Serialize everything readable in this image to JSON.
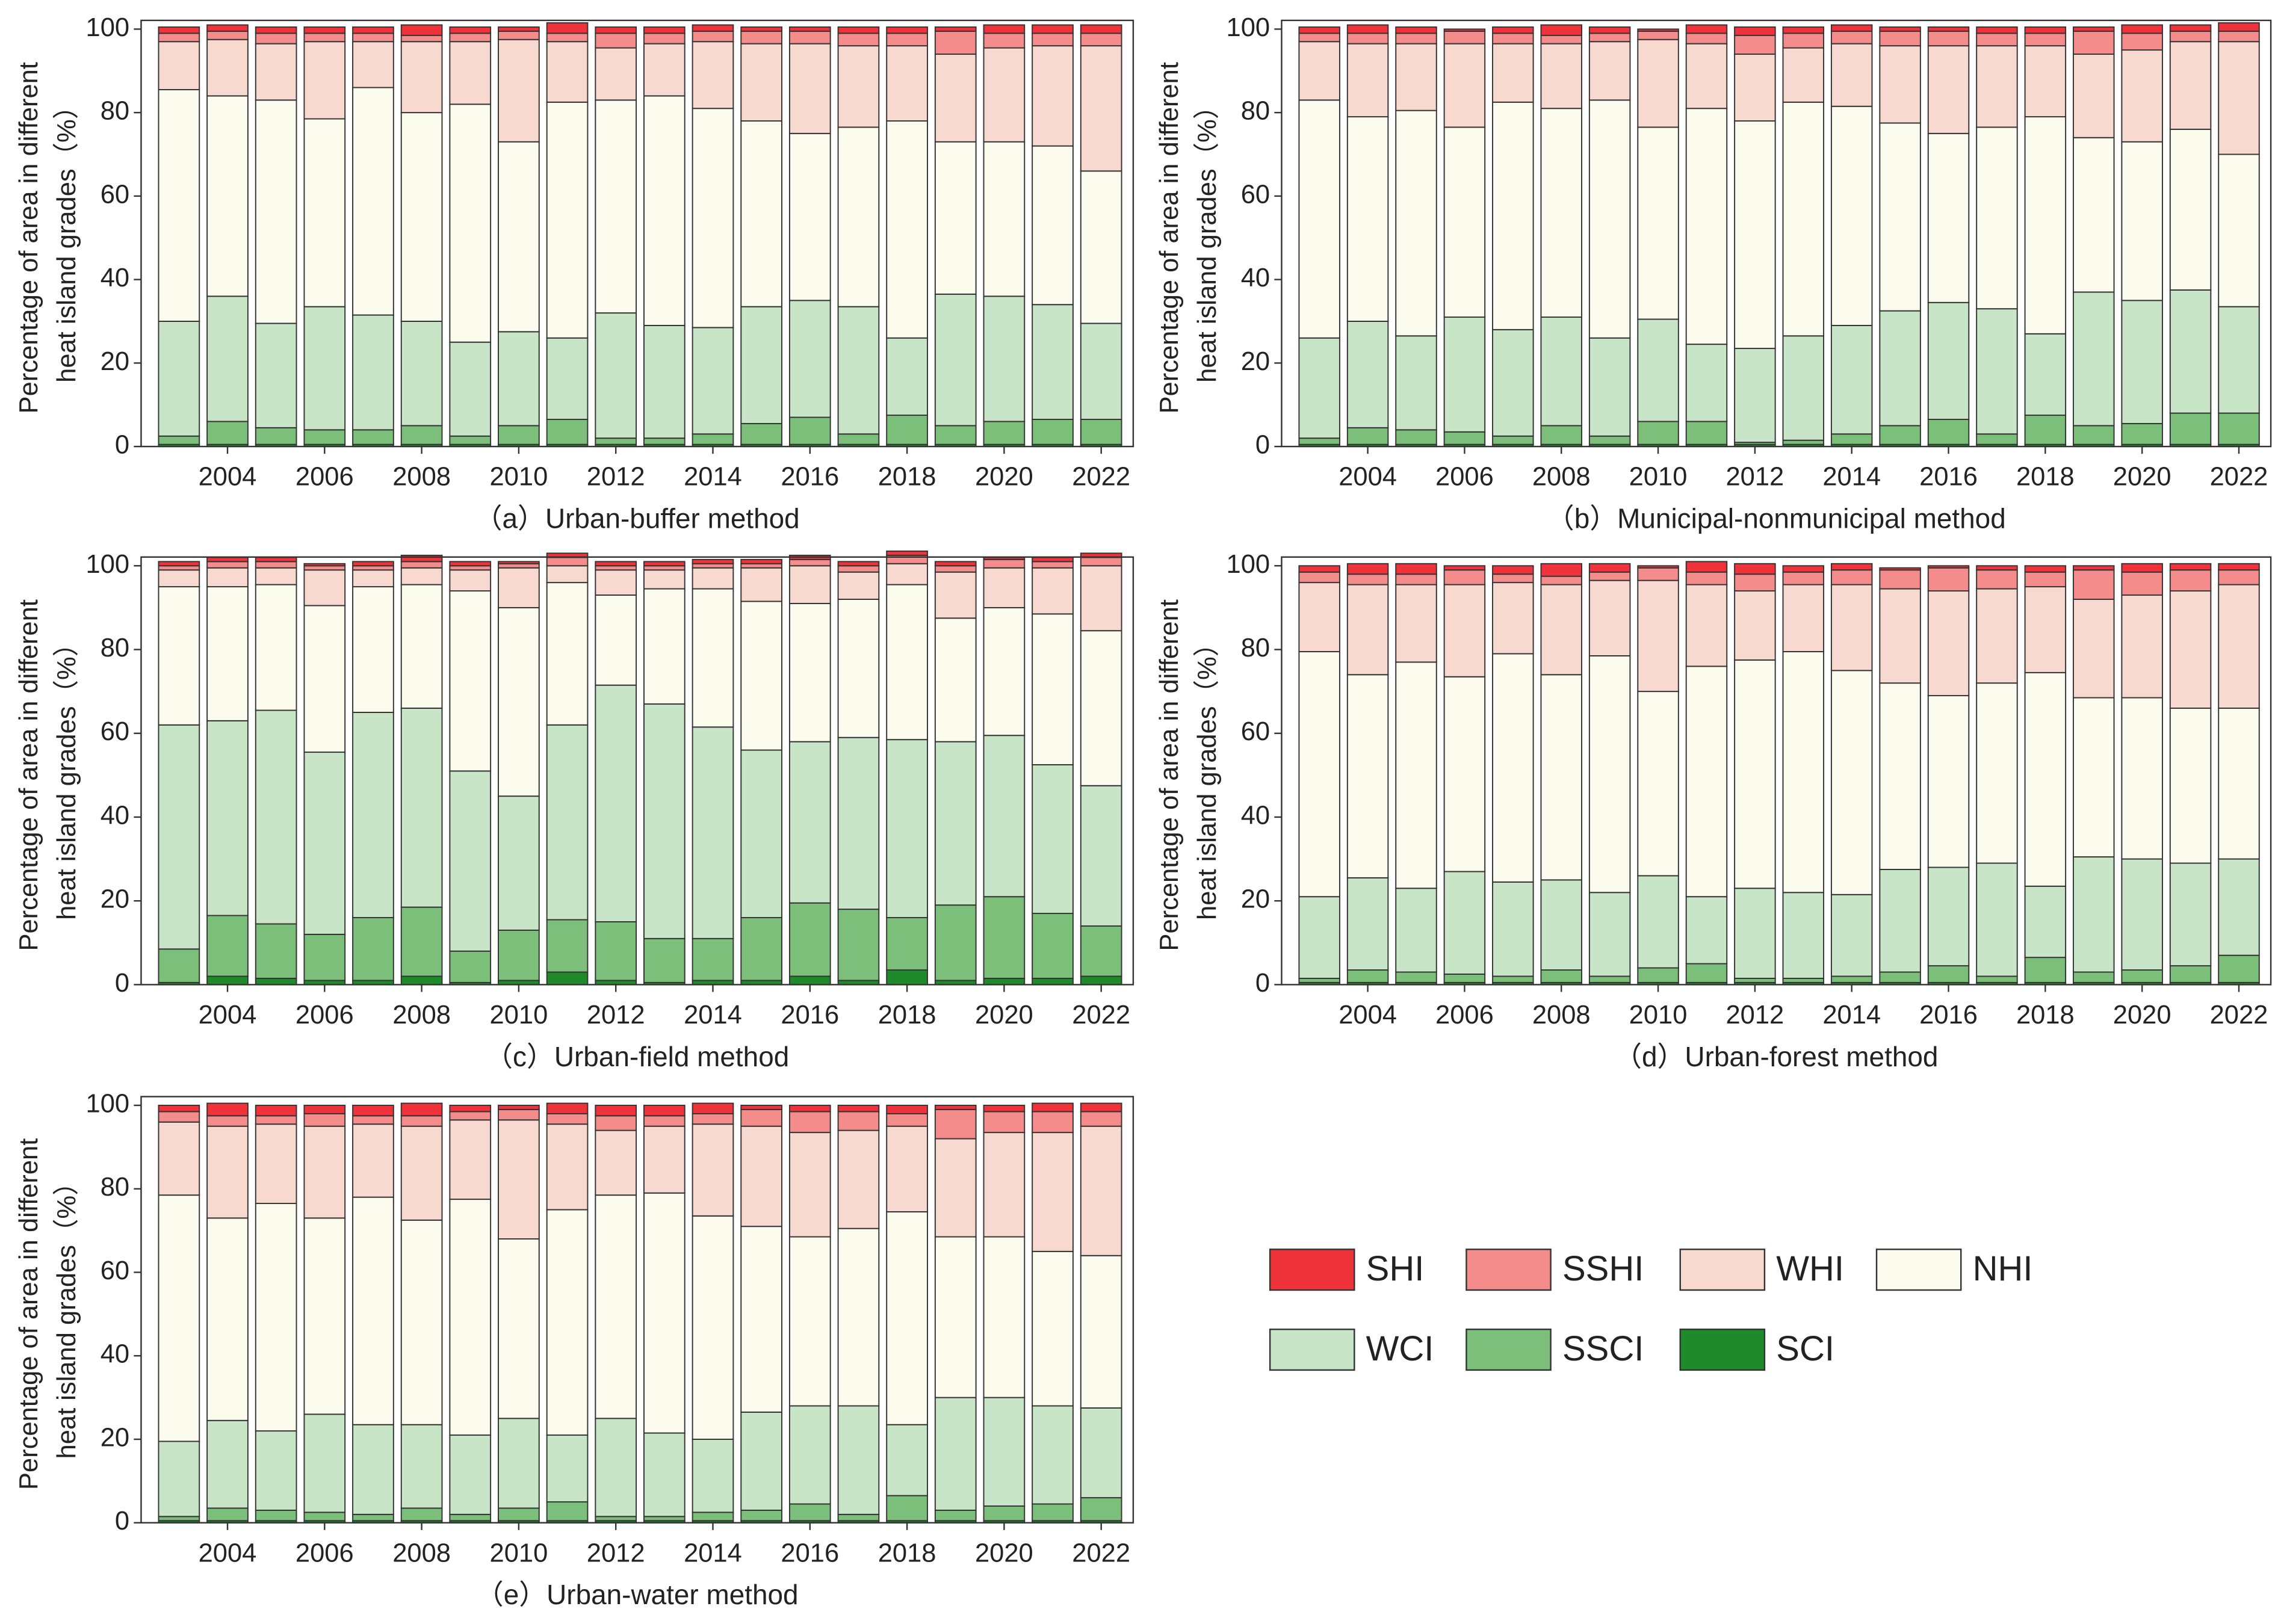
{
  "chart_data": [
    {
      "type": "bar",
      "stacked": true,
      "caption": "（a）Urban-buffer method",
      "ylabel": [
        "Percentage of area in different",
        "heat island grades（%）"
      ],
      "x": [
        2003,
        2004,
        2005,
        2006,
        2007,
        2008,
        2009,
        2010,
        2011,
        2012,
        2013,
        2014,
        2015,
        2016,
        2017,
        2018,
        2019,
        2020,
        2021,
        2022
      ],
      "xlim": [
        2002.22,
        2022.66
      ],
      "xticks": [
        2004,
        2006,
        2008,
        2010,
        2012,
        2014,
        2016,
        2018,
        2020,
        2022
      ],
      "ylim": [
        0,
        100
      ],
      "yticks": [
        0,
        20,
        40,
        60,
        80,
        100
      ],
      "series": [
        {
          "name": "SHI",
          "color": "#f0333b",
          "values": [
            1.5,
            1.5,
            1.5,
            1.5,
            1.5,
            2.5,
            1.5,
            1,
            2.5,
            1.5,
            1.5,
            1.5,
            1,
            1,
            1.5,
            1.5,
            1,
            2,
            2,
            2
          ]
        },
        {
          "name": "SSHI",
          "color": "#f48c8c",
          "values": [
            2,
            2,
            2.5,
            2,
            2,
            1.5,
            2,
            2,
            2,
            3.5,
            2.5,
            2.5,
            3,
            3,
            3,
            3,
            5.5,
            3.5,
            3,
            3
          ]
        },
        {
          "name": "WHI",
          "color": "#f8d9d0",
          "values": [
            11.5,
            13.5,
            13.5,
            18.5,
            11,
            17,
            15,
            24.5,
            14.5,
            12.5,
            12.5,
            16,
            18.5,
            21.5,
            19.5,
            18,
            21,
            22.5,
            24,
            30
          ]
        },
        {
          "name": "NHI",
          "color": "#fbfcee",
          "values": [
            55.5,
            48,
            53.5,
            45,
            54.5,
            50,
            57,
            45.5,
            56.5,
            51,
            55,
            52.5,
            44.5,
            40,
            43,
            52,
            36.5,
            37,
            38,
            36.5
          ]
        },
        {
          "name": "WCI",
          "color": "#c9e5c7",
          "values": [
            27.5,
            30,
            25,
            29.5,
            27.5,
            25,
            22.5,
            22.5,
            19.5,
            30,
            27,
            25.5,
            28,
            28,
            30.5,
            18.5,
            31.5,
            30,
            27.5,
            23
          ]
        },
        {
          "name": "SSCI",
          "color": "#7bbf7b",
          "values": [
            2,
            5.5,
            4,
            3.5,
            3.5,
            4.5,
            2,
            4.5,
            6,
            1.5,
            1.5,
            2.5,
            5,
            6.5,
            2.5,
            7,
            4.5,
            5.5,
            6,
            6
          ]
        },
        {
          "name": "SCI",
          "color": "#1f8a2a",
          "values": [
            0.5,
            0.5,
            0.5,
            0.5,
            0.5,
            0.5,
            0.5,
            0.5,
            0.5,
            0.5,
            0.5,
            0.5,
            0.5,
            0.5,
            0.5,
            0.5,
            0.5,
            0.5,
            0.5,
            0.5
          ]
        }
      ]
    },
    {
      "type": "bar",
      "stacked": true,
      "caption": "（b）Municipal-nonmunicipal method",
      "ylabel": [
        "Percentage of area in different",
        "heat island grades（%）"
      ],
      "x": [
        2003,
        2004,
        2005,
        2006,
        2007,
        2008,
        2009,
        2010,
        2011,
        2012,
        2013,
        2014,
        2015,
        2016,
        2017,
        2018,
        2019,
        2020,
        2021,
        2022
      ],
      "xlim": [
        2002.22,
        2022.66
      ],
      "xticks": [
        2004,
        2006,
        2008,
        2010,
        2012,
        2014,
        2016,
        2018,
        2020,
        2022
      ],
      "ylim": [
        0,
        100
      ],
      "yticks": [
        0,
        20,
        40,
        60,
        80,
        100
      ],
      "series": [
        {
          "name": "SHI",
          "color": "#f0333b",
          "values": [
            1.5,
            2,
            1.5,
            0.5,
            1.5,
            2.5,
            1.5,
            0.5,
            2,
            2,
            1.5,
            1.5,
            1,
            1,
            1.5,
            1.5,
            1,
            2,
            1.5,
            2
          ]
        },
        {
          "name": "SSHI",
          "color": "#f48c8c",
          "values": [
            2,
            2.5,
            2.5,
            3,
            2.5,
            2,
            2,
            2,
            2.5,
            4.5,
            3.5,
            3,
            3.5,
            3.5,
            3,
            3,
            5.5,
            4,
            2.5,
            2.5
          ]
        },
        {
          "name": "WHI",
          "color": "#f8d9d0",
          "values": [
            14,
            17.5,
            16,
            20,
            14,
            15.5,
            14,
            21,
            15.5,
            16,
            13,
            15,
            18.5,
            21,
            19.5,
            17,
            20,
            22,
            21,
            27
          ]
        },
        {
          "name": "NHI",
          "color": "#fbfcee",
          "values": [
            57,
            49,
            54,
            45.5,
            54.5,
            50,
            57,
            46,
            56.5,
            54.5,
            56,
            52.5,
            45,
            40.5,
            43.5,
            52,
            37,
            38,
            38.5,
            36.5
          ]
        },
        {
          "name": "WCI",
          "color": "#c9e5c7",
          "values": [
            24,
            25.5,
            22.5,
            27.5,
            25.5,
            26,
            23.5,
            24.5,
            18.5,
            22.5,
            25,
            26,
            27.5,
            28,
            30,
            19.5,
            32,
            29.5,
            29.5,
            25.5
          ]
        },
        {
          "name": "SSCI",
          "color": "#7bbf7b",
          "values": [
            1.5,
            4,
            3.5,
            3,
            2,
            4.5,
            2,
            5.5,
            5.5,
            0.5,
            1,
            2.5,
            4.5,
            6,
            2.5,
            7,
            4.5,
            5,
            7.5,
            7.5
          ]
        },
        {
          "name": "SCI",
          "color": "#1f8a2a",
          "values": [
            0.5,
            0.5,
            0.5,
            0.5,
            0.5,
            0.5,
            0.5,
            0.5,
            0.5,
            0.5,
            0.5,
            0.5,
            0.5,
            0.5,
            0.5,
            0.5,
            0.5,
            0.5,
            0.5,
            0.5
          ]
        }
      ]
    },
    {
      "type": "bar",
      "stacked": true,
      "caption": "（c）Urban-field method",
      "ylabel": [
        "Percentage of area in different",
        "heat island grades（%）"
      ],
      "x": [
        2003,
        2004,
        2005,
        2006,
        2007,
        2008,
        2009,
        2010,
        2011,
        2012,
        2013,
        2014,
        2015,
        2016,
        2017,
        2018,
        2019,
        2020,
        2021,
        2022
      ],
      "xlim": [
        2002.22,
        2022.66
      ],
      "xticks": [
        2004,
        2006,
        2008,
        2010,
        2012,
        2014,
        2016,
        2018,
        2020,
        2022
      ],
      "ylim": [
        0,
        100
      ],
      "yticks": [
        0,
        20,
        40,
        60,
        80,
        100
      ],
      "series": [
        {
          "name": "SHI",
          "color": "#f0333b",
          "values": [
            1,
            1,
            1,
            0.5,
            1,
            1.5,
            1,
            0.5,
            1,
            1,
            1,
            1,
            1,
            1,
            1,
            1,
            1,
            0.5,
            1,
            1
          ]
        },
        {
          "name": "SSHI",
          "color": "#f48c8c",
          "values": [
            1,
            1.5,
            1.5,
            1,
            1,
            1.5,
            1,
            1,
            2,
            1,
            1,
            1,
            1,
            1.5,
            1.5,
            2,
            1.5,
            2,
            1.5,
            2
          ]
        },
        {
          "name": "WHI",
          "color": "#f8d9d0",
          "values": [
            4,
            4.5,
            4,
            8.5,
            4,
            4,
            5,
            9.5,
            4,
            6,
            4.5,
            5,
            8,
            9,
            6.5,
            5,
            11,
            9.5,
            11,
            15.5
          ]
        },
        {
          "name": "NHI",
          "color": "#fbfcee",
          "values": [
            33,
            32,
            30,
            35,
            30,
            29.5,
            43,
            45,
            34,
            21.5,
            27.5,
            33,
            35.5,
            33,
            33,
            37,
            29.5,
            30.5,
            36,
            37
          ]
        },
        {
          "name": "WCI",
          "color": "#c9e5c7",
          "values": [
            53.5,
            46.5,
            51,
            43.5,
            49,
            47.5,
            43,
            32,
            46.5,
            56.5,
            56,
            50.5,
            40,
            38.5,
            41,
            42.5,
            39,
            38.5,
            35.5,
            33.5
          ]
        },
        {
          "name": "SSCI",
          "color": "#7bbf7b",
          "values": [
            8,
            14.5,
            13,
            11,
            15,
            16.5,
            7.5,
            12,
            12.5,
            14,
            10.5,
            10,
            15,
            17.5,
            17,
            12.5,
            18,
            19.5,
            15.5,
            12
          ]
        },
        {
          "name": "SCI",
          "color": "#1f8a2a",
          "values": [
            0.5,
            2,
            1.5,
            1,
            1,
            2,
            0.5,
            1,
            3,
            1,
            0.5,
            1,
            1,
            2,
            1,
            3.5,
            1,
            1.5,
            1.5,
            2
          ]
        }
      ]
    },
    {
      "type": "bar",
      "stacked": true,
      "caption": "（d）Urban-forest method",
      "ylabel": [
        "Percentage of area in different",
        "heat island grades（%）"
      ],
      "x": [
        2003,
        2004,
        2005,
        2006,
        2007,
        2008,
        2009,
        2010,
        2011,
        2012,
        2013,
        2014,
        2015,
        2016,
        2017,
        2018,
        2019,
        2020,
        2021,
        2022
      ],
      "xlim": [
        2002.22,
        2022.66
      ],
      "xticks": [
        2004,
        2006,
        2008,
        2010,
        2012,
        2014,
        2016,
        2018,
        2020,
        2022
      ],
      "ylim": [
        0,
        100
      ],
      "yticks": [
        0,
        20,
        40,
        60,
        80,
        100
      ],
      "series": [
        {
          "name": "SHI",
          "color": "#f0333b",
          "values": [
            1.5,
            2.5,
            2.5,
            1,
            2,
            3,
            2,
            0.5,
            2.5,
            2.5,
            1.5,
            1.5,
            0.5,
            0.5,
            1,
            1.5,
            1,
            2,
            1.5,
            1.5
          ]
        },
        {
          "name": "SSHI",
          "color": "#f48c8c",
          "values": [
            2.5,
            2.5,
            2.5,
            3.5,
            2,
            2,
            2,
            3,
            3,
            4,
            3,
            3.5,
            4.5,
            5.5,
            4.5,
            3.5,
            7,
            5.5,
            5,
            3.5
          ]
        },
        {
          "name": "WHI",
          "color": "#f8d9d0",
          "values": [
            16.5,
            21.5,
            18.5,
            22,
            17,
            21.5,
            18,
            26.5,
            19.5,
            16.5,
            16,
            20.5,
            22.5,
            25,
            22.5,
            20.5,
            23.5,
            24.5,
            28,
            29.5
          ]
        },
        {
          "name": "NHI",
          "color": "#fbfcee",
          "values": [
            58.5,
            48.5,
            54,
            46.5,
            54.5,
            49,
            56.5,
            44,
            55,
            54.5,
            57.5,
            53.5,
            44.5,
            41,
            43,
            51,
            38,
            38.5,
            37,
            36
          ]
        },
        {
          "name": "WCI",
          "color": "#c9e5c7",
          "values": [
            19.5,
            22,
            20,
            24.5,
            22.5,
            21.5,
            20,
            22,
            16,
            21.5,
            20.5,
            19.5,
            24.5,
            23.5,
            27,
            17,
            27.5,
            26.5,
            24.5,
            23
          ]
        },
        {
          "name": "SSCI",
          "color": "#7bbf7b",
          "values": [
            1,
            3,
            2.5,
            2,
            1.5,
            3,
            1.5,
            3.5,
            4.5,
            1,
            1,
            1.5,
            2.5,
            4,
            1.5,
            6,
            2.5,
            3,
            4,
            6.5
          ]
        },
        {
          "name": "SCI",
          "color": "#1f8a2a",
          "values": [
            0.5,
            0.5,
            0.5,
            0.5,
            0.5,
            0.5,
            0.5,
            0.5,
            0.5,
            0.5,
            0.5,
            0.5,
            0.5,
            0.5,
            0.5,
            0.5,
            0.5,
            0.5,
            0.5,
            0.5
          ]
        }
      ]
    },
    {
      "type": "bar",
      "stacked": true,
      "caption": "（e）Urban-water method",
      "ylabel": [
        "Percentage of area in different",
        "heat island grades（%）"
      ],
      "x": [
        2003,
        2004,
        2005,
        2006,
        2007,
        2008,
        2009,
        2010,
        2011,
        2012,
        2013,
        2014,
        2015,
        2016,
        2017,
        2018,
        2019,
        2020,
        2021,
        2022
      ],
      "xlim": [
        2002.22,
        2022.66
      ],
      "xticks": [
        2004,
        2006,
        2008,
        2010,
        2012,
        2014,
        2016,
        2018,
        2020,
        2022
      ],
      "ylim": [
        0,
        100
      ],
      "yticks": [
        0,
        20,
        40,
        60,
        80,
        100
      ],
      "series": [
        {
          "name": "SHI",
          "color": "#f0333b",
          "values": [
            1.5,
            3,
            2.5,
            2,
            2.5,
            3,
            1.5,
            1,
            2.5,
            2.5,
            2.5,
            2.5,
            1,
            1.5,
            1.5,
            2,
            1,
            1.5,
            2,
            2
          ]
        },
        {
          "name": "SSHI",
          "color": "#f48c8c",
          "values": [
            2.5,
            2.5,
            2,
            3,
            2,
            2.5,
            2,
            2.5,
            2.5,
            3.5,
            2.5,
            2.5,
            4,
            5,
            4.5,
            3,
            7,
            5,
            5,
            3.5
          ]
        },
        {
          "name": "WHI",
          "color": "#f8d9d0",
          "values": [
            17.5,
            22,
            19,
            22,
            17.5,
            22.5,
            19,
            28.5,
            20.5,
            15.5,
            16,
            22,
            24,
            25,
            23.5,
            20.5,
            23.5,
            25,
            28.5,
            31
          ]
        },
        {
          "name": "NHI",
          "color": "#fbfcee",
          "values": [
            59,
            48.5,
            54.5,
            47,
            54.5,
            49,
            56.5,
            43,
            54,
            53.5,
            57.5,
            53.5,
            44.5,
            40.5,
            42.5,
            51,
            38.5,
            38.5,
            37,
            36.5
          ]
        },
        {
          "name": "WCI",
          "color": "#c9e5c7",
          "values": [
            18,
            21,
            19,
            23.5,
            21.5,
            20,
            19,
            21.5,
            16,
            23.5,
            20,
            17.5,
            23.5,
            23.5,
            26,
            17,
            27,
            26,
            23.5,
            21.5
          ]
        },
        {
          "name": "SSCI",
          "color": "#7bbf7b",
          "values": [
            1,
            3,
            2.5,
            2,
            1.5,
            3,
            1.5,
            3,
            4.5,
            1,
            1,
            2,
            2.5,
            4,
            1.5,
            6,
            2.5,
            3.5,
            4,
            5.5
          ]
        },
        {
          "name": "SCI",
          "color": "#1f8a2a",
          "values": [
            0.5,
            0.5,
            0.5,
            0.5,
            0.5,
            0.5,
            0.5,
            0.5,
            0.5,
            0.5,
            0.5,
            0.5,
            0.5,
            0.5,
            0.5,
            0.5,
            0.5,
            0.5,
            0.5,
            0.5
          ]
        }
      ]
    }
  ]
}
